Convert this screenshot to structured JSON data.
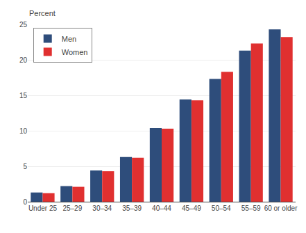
{
  "chart_data": {
    "type": "bar",
    "categories": [
      "Under 25",
      "25–29",
      "30–34",
      "35–39",
      "40–44",
      "45–49",
      "50–54",
      "55–59",
      "60 or older"
    ],
    "series": [
      {
        "name": "Men",
        "color": "#2e4d7b",
        "values": [
          1.3,
          2.2,
          4.4,
          6.3,
          10.4,
          14.4,
          17.3,
          21.3,
          24.3
        ]
      },
      {
        "name": "Women",
        "color": "#e03030",
        "values": [
          1.2,
          2.1,
          4.3,
          6.2,
          10.3,
          14.3,
          18.3,
          22.3,
          23.2
        ]
      }
    ],
    "ylabel": "Percent",
    "ylim": [
      0,
      25
    ],
    "yticks": [
      0,
      5,
      10,
      15,
      20,
      25
    ],
    "grid": true,
    "legend": "upper left"
  }
}
